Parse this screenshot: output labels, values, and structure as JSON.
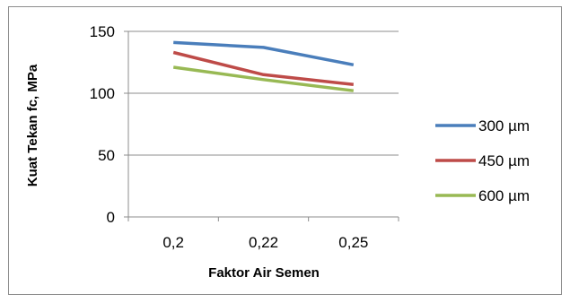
{
  "chart_data": {
    "type": "line",
    "categories": [
      "0,2",
      "0,22",
      "0,25"
    ],
    "series": [
      {
        "name": "300 µm",
        "values": [
          141,
          137,
          123
        ],
        "color": "#4a7ebb"
      },
      {
        "name": "450 µm",
        "values": [
          133,
          115,
          107
        ],
        "color": "#be4b48"
      },
      {
        "name": "600 µm",
        "values": [
          121,
          111,
          102
        ],
        "color": "#98b954"
      }
    ],
    "title": "",
    "xlabel": "Faktor Air Semen",
    "ylabel": "Kuat Tekan fc, MPa",
    "ylim": [
      0,
      150
    ],
    "yticks": [
      0,
      50,
      100,
      150
    ],
    "grid": true,
    "legend": "right"
  }
}
